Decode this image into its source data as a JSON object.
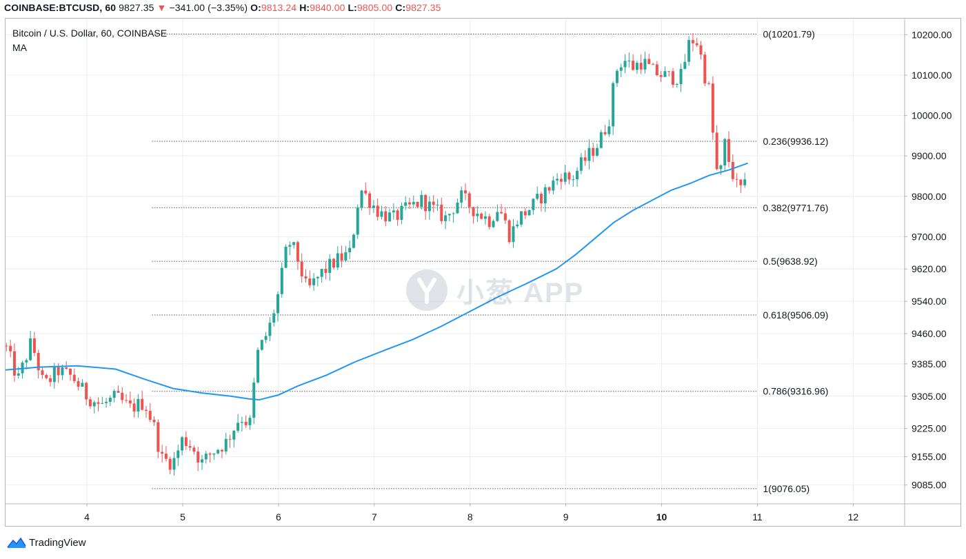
{
  "header": {
    "symbol": "COINBASE:BTCUSD, 60",
    "last": "9827.35",
    "change": "−341.00 (−3.35%)",
    "open_label": "O:",
    "open": "9813.24",
    "high_label": "H:",
    "high": "9840.00",
    "low_label": "L:",
    "low": "9805.00",
    "close_label": "C:",
    "close": "9827.35"
  },
  "legend": {
    "title": "Bitcoin / U.S. Dollar, 60, COINBASE",
    "indicator": "MA"
  },
  "brand": {
    "name": "TradingView",
    "logo_icon": "tradingview-logo-icon"
  },
  "watermark": {
    "text": "小葱 APP",
    "icon": "scallion-logo-icon"
  },
  "colors": {
    "up": "#26a69a",
    "down": "#ef5350",
    "ma": "#2196f3",
    "grid": "#e9edf2",
    "fib": "#555555"
  },
  "chart_data": {
    "type": "candlestick",
    "title": "Bitcoin / U.S. Dollar, 60, COINBASE",
    "x_axis": {
      "ticks": [
        "4",
        "5",
        "6",
        "7",
        "8",
        "9",
        "10",
        "11",
        "12"
      ],
      "range": [
        3.15,
        12.53
      ]
    },
    "y_axis": {
      "ticks": [
        "10200.00",
        "10100.00",
        "10000.00",
        "9900.00",
        "9800.00",
        "9700.00",
        "9620.00",
        "9540.00",
        "9460.00",
        "9385.00",
        "9305.00",
        "9225.00",
        "9155.00",
        "9085.00"
      ],
      "range": [
        9040,
        10240
      ]
    },
    "grid": true,
    "fib_levels": [
      {
        "label": "0(10201.79)",
        "value": 10201.79
      },
      {
        "label": "0.236(9936.12)",
        "value": 9936.12
      },
      {
        "label": "0.382(9771.76)",
        "value": 9771.76
      },
      {
        "label": "0.5(9638.92)",
        "value": 9638.92
      },
      {
        "label": "0.618(9506.09)",
        "value": 9506.09
      },
      {
        "label": "0.786(9316.96)",
        "value": 9316.96
      },
      {
        "label": "1(9076.05)",
        "value": 9076.05
      }
    ],
    "fib_x_range": [
      4.68,
      11.0
    ],
    "candle_anchors": [
      [
        3.15,
        9430
      ],
      [
        3.28,
        9345
      ],
      [
        3.42,
        9440
      ],
      [
        3.55,
        9330
      ],
      [
        3.7,
        9368
      ],
      [
        3.85,
        9352
      ],
      [
        4.0,
        9305
      ],
      [
        4.15,
        9282
      ],
      [
        4.3,
        9302
      ],
      [
        4.45,
        9275
      ],
      [
        4.6,
        9290
      ],
      [
        4.7,
        9230
      ],
      [
        4.78,
        9150
      ],
      [
        4.9,
        9140
      ],
      [
        5.0,
        9200
      ],
      [
        5.1,
        9180
      ],
      [
        5.2,
        9140
      ],
      [
        5.3,
        9165
      ],
      [
        5.45,
        9190
      ],
      [
        5.6,
        9255
      ],
      [
        5.7,
        9235
      ],
      [
        5.78,
        9410
      ],
      [
        5.9,
        9470
      ],
      [
        6.0,
        9560
      ],
      [
        6.1,
        9690
      ],
      [
        6.18,
        9660
      ],
      [
        6.3,
        9565
      ],
      [
        6.45,
        9610
      ],
      [
        6.6,
        9640
      ],
      [
        6.75,
        9660
      ],
      [
        6.85,
        9820
      ],
      [
        6.95,
        9790
      ],
      [
        7.05,
        9760
      ],
      [
        7.2,
        9745
      ],
      [
        7.35,
        9770
      ],
      [
        7.5,
        9790
      ],
      [
        7.6,
        9770
      ],
      [
        7.75,
        9745
      ],
      [
        7.9,
        9800
      ],
      [
        8.05,
        9765
      ],
      [
        8.2,
        9740
      ],
      [
        8.3,
        9775
      ],
      [
        8.42,
        9700
      ],
      [
        8.5,
        9745
      ],
      [
        8.65,
        9775
      ],
      [
        8.8,
        9815
      ],
      [
        8.95,
        9855
      ],
      [
        9.05,
        9840
      ],
      [
        9.15,
        9875
      ],
      [
        9.25,
        9905
      ],
      [
        9.35,
        9935
      ],
      [
        9.45,
        9990
      ],
      [
        9.52,
        10110
      ],
      [
        9.6,
        10140
      ],
      [
        9.7,
        10120
      ],
      [
        9.8,
        10135
      ],
      [
        9.9,
        10110
      ],
      [
        10.0,
        10100
      ],
      [
        10.1,
        10095
      ],
      [
        10.2,
        10095
      ],
      [
        10.3,
        10190
      ],
      [
        10.38,
        10180
      ],
      [
        10.45,
        10100
      ],
      [
        10.5,
        10060
      ],
      [
        10.55,
        9910
      ],
      [
        10.6,
        9820
      ],
      [
        10.65,
        9940
      ],
      [
        10.72,
        9870
      ],
      [
        10.8,
        9815
      ],
      [
        10.9,
        9825
      ]
    ],
    "ma_points": [
      [
        3.15,
        9370
      ],
      [
        3.5,
        9377
      ],
      [
        3.9,
        9380
      ],
      [
        4.3,
        9372
      ],
      [
        4.6,
        9347
      ],
      [
        4.9,
        9324
      ],
      [
        5.2,
        9313
      ],
      [
        5.5,
        9305
      ],
      [
        5.7,
        9298
      ],
      [
        5.8,
        9296
      ],
      [
        6.0,
        9308
      ],
      [
        6.2,
        9330
      ],
      [
        6.5,
        9357
      ],
      [
        6.8,
        9390
      ],
      [
        7.1,
        9418
      ],
      [
        7.4,
        9445
      ],
      [
        7.7,
        9478
      ],
      [
        8.0,
        9515
      ],
      [
        8.3,
        9552
      ],
      [
        8.6,
        9585
      ],
      [
        8.9,
        9620
      ],
      [
        9.1,
        9655
      ],
      [
        9.3,
        9695
      ],
      [
        9.5,
        9735
      ],
      [
        9.7,
        9765
      ],
      [
        9.9,
        9790
      ],
      [
        10.1,
        9815
      ],
      [
        10.3,
        9832
      ],
      [
        10.5,
        9852
      ],
      [
        10.7,
        9865
      ],
      [
        10.9,
        9882
      ]
    ]
  }
}
